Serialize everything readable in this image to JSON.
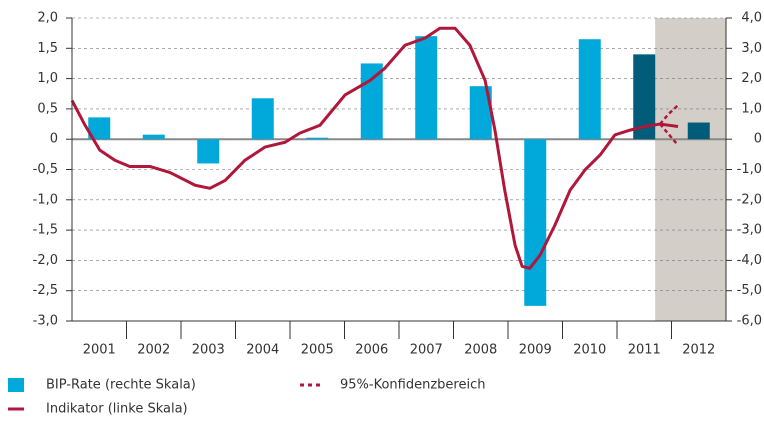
{
  "chart_data": {
    "type": "combo",
    "categories": [
      "2001",
      "2002",
      "2003",
      "2004",
      "2005",
      "2006",
      "2007",
      "2008",
      "2009",
      "2010",
      "2011",
      "2012"
    ],
    "xlim": [
      2001,
      2013
    ],
    "ylim": [
      -3,
      2
    ],
    "yticks": [
      {
        "value": 2,
        "label": "2,0"
      },
      {
        "value": 1.5,
        "label": "1,5"
      },
      {
        "value": 1,
        "label": "1,0"
      },
      {
        "value": 0.5,
        "label": "0,5"
      },
      0,
      {
        "value": -0.5,
        "label": "-0,5"
      },
      {
        "value": -1,
        "label": "-1,0"
      },
      {
        "value": -1.5,
        "label": "-1,5"
      },
      {
        "value": -2,
        "label": "-2,0"
      },
      {
        "value": -2.5,
        "label": "-2,5"
      },
      {
        "value": -3,
        "label": "-3,0"
      }
    ],
    "y2lim": [
      -6,
      4
    ],
    "y2ticks": [
      {
        "value": 4,
        "label": "4,0"
      },
      {
        "value": 3,
        "label": "3,0"
      },
      {
        "value": 2,
        "label": "2,0"
      },
      {
        "value": 1,
        "label": "1,0"
      },
      0,
      {
        "value": -1,
        "label": "-1,0"
      },
      {
        "value": -2,
        "label": "-2,0"
      },
      {
        "value": -3,
        "label": "-3,0"
      },
      {
        "value": -4,
        "label": "-4,0"
      },
      {
        "value": -5,
        "label": "-5,0"
      },
      {
        "value": -6,
        "label": "-6,0"
      }
    ],
    "grid": true,
    "forecast_shade": [
      2011.7,
      2013
    ],
    "shade_color": "#d3cec8",
    "series": [
      {
        "name": "BIP-Rate (rechte Skala)",
        "type": "bar",
        "axis": "y2",
        "values": [
          0.72,
          0.15,
          -0.8,
          1.35,
          0.05,
          2.5,
          3.4,
          1.75,
          -5.5,
          3.3,
          2.8,
          0.55
        ],
        "colors": [
          "#00a9d9",
          "#00a9d9",
          "#00a9d9",
          "#00a9d9",
          "#00a9d9",
          "#00a9d9",
          "#00a9d9",
          "#00a9d9",
          "#00a9d9",
          "#00a9d9",
          "#005c78",
          "#005c78"
        ]
      },
      {
        "name": "Indikator (linke Skala)",
        "type": "line",
        "color": "#b0173a",
        "x": [
          2001.0,
          2001.24,
          2001.51,
          2001.79,
          2002.06,
          2002.43,
          2002.8,
          2003.26,
          2003.53,
          2003.81,
          2004.17,
          2004.54,
          2004.91,
          2005.18,
          2005.55,
          2006.01,
          2006.47,
          2006.74,
          2007.11,
          2007.48,
          2007.75,
          2008.03,
          2008.3,
          2008.58,
          2008.76,
          2008.94,
          2009.13,
          2009.26,
          2009.4,
          2009.59,
          2009.86,
          2010.14,
          2010.41,
          2010.69,
          2010.96,
          2011.24,
          2011.51,
          2011.79,
          2012.12
        ],
        "values": [
          0.64,
          0.23,
          -0.18,
          -0.35,
          -0.45,
          -0.45,
          -0.55,
          -0.76,
          -0.81,
          -0.68,
          -0.35,
          -0.13,
          -0.05,
          0.1,
          0.23,
          0.73,
          0.97,
          1.17,
          1.55,
          1.67,
          1.83,
          1.83,
          1.55,
          0.97,
          0.15,
          -0.84,
          -1.75,
          -2.1,
          -2.13,
          -1.91,
          -1.42,
          -0.84,
          -0.51,
          -0.26,
          0.07,
          0.15,
          0.21,
          0.25,
          0.21
        ]
      },
      {
        "name": "95%-Konfidenzbereich",
        "type": "band",
        "color": "#b0173a",
        "x": [
          2011.79,
          2011.95,
          2012.12
        ],
        "upper": [
          0.25,
          0.42,
          0.56
        ],
        "lower": [
          0.25,
          0.08,
          -0.1
        ]
      }
    ]
  }
}
